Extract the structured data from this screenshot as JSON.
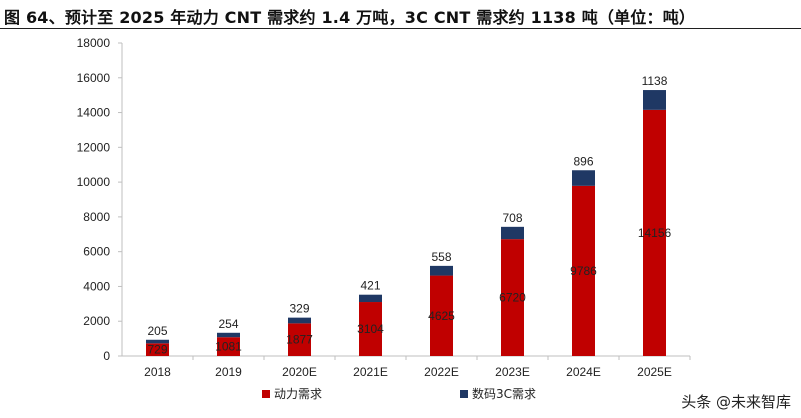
{
  "title": "图 64、预计至 2025 年动力 CNT 需求约 1.4 万吨，3C CNT 需求约 1138 吨（单位：吨）",
  "watermark": "头条 @未来智库",
  "chart_data": {
    "type": "bar",
    "stacked": true,
    "categories": [
      "2018",
      "2019",
      "2020E",
      "2021E",
      "2022E",
      "2023E",
      "2024E",
      "2025E"
    ],
    "series": [
      {
        "name": "动力需求",
        "color": "#c00000",
        "values": [
          729,
          1081,
          1877,
          3104,
          4625,
          6720,
          9786,
          14156
        ]
      },
      {
        "name": "数码3C需求",
        "color": "#1f3864",
        "values": [
          205,
          254,
          329,
          421,
          558,
          708,
          896,
          1138
        ]
      }
    ],
    "ylim": [
      0,
      18000
    ],
    "yticks": [
      0,
      2000,
      4000,
      6000,
      8000,
      10000,
      12000,
      14000,
      16000,
      18000
    ],
    "legend_position": "bottom",
    "grid": false
  }
}
